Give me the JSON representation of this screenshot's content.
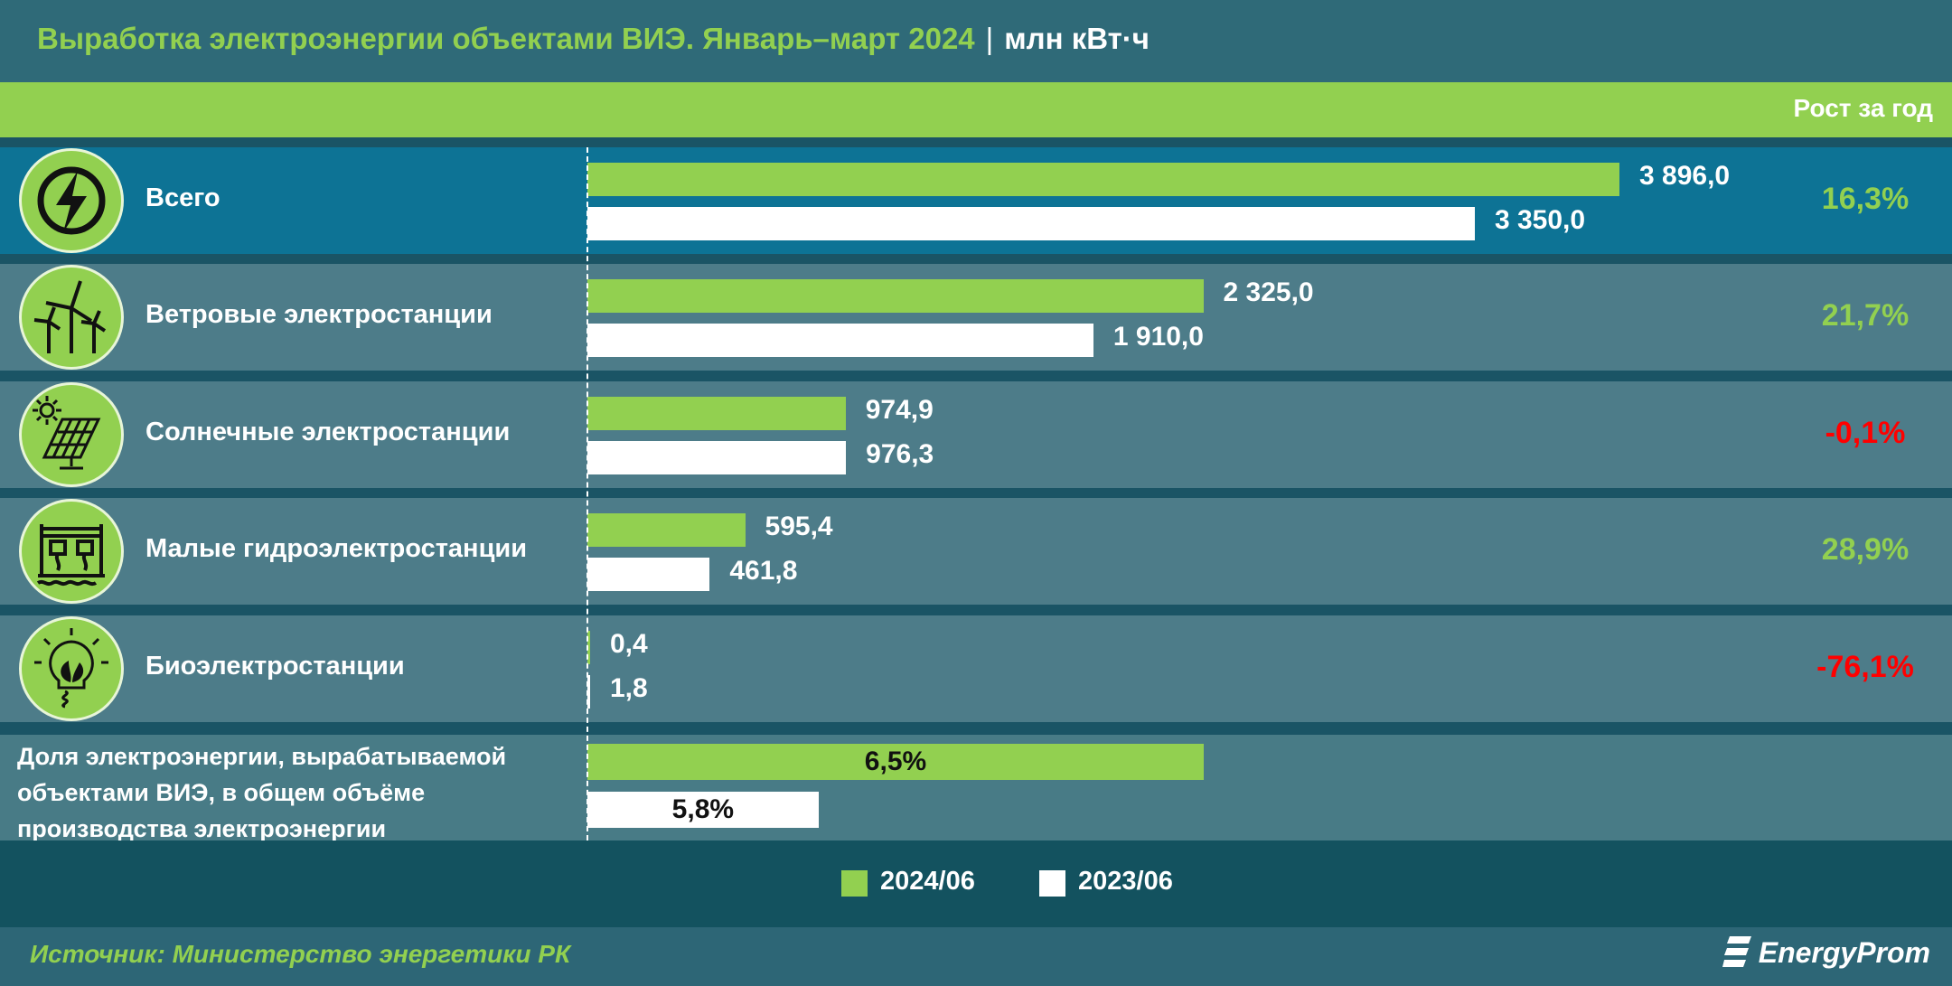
{
  "header": {
    "title": "Выработка электроэнергии объектами ВИЭ. Январь–март 2024",
    "separator": "|",
    "unit": "млн кВт·ч",
    "growth_header": "Рост за год"
  },
  "colors": {
    "series_2024": "#92d050",
    "series_2023": "#ffffff",
    "positive": "#92d050",
    "negative": "#ff0000"
  },
  "chart_data": {
    "type": "bar",
    "orientation": "horizontal",
    "title": "Выработка электроэнергии объектами ВИЭ. Январь–март 2024",
    "unit": "млн кВт·ч",
    "xlim": [
      0,
      3896
    ],
    "categories": [
      "Всего",
      "Ветровые электростанции",
      "Солнечные электростанции",
      "Малые гидроэлектростанции",
      "Биоэлектростанции"
    ],
    "icons": [
      "lightning-icon",
      "wind-turbine-icon",
      "solar-panel-icon",
      "hydro-dam-icon",
      "bio-bulb-icon"
    ],
    "series": [
      {
        "name": "2024/06",
        "values": [
          3896.0,
          2325.0,
          974.9,
          595.4,
          0.4
        ],
        "labels": [
          "3 896,0",
          "2 325,0",
          "974,9",
          "595,4",
          "0,4"
        ]
      },
      {
        "name": "2023/06",
        "values": [
          3350.0,
          1910.0,
          976.3,
          461.8,
          1.8
        ],
        "labels": [
          "3 350,0",
          "1 910,0",
          "976,3",
          "461,8",
          "1,8"
        ]
      }
    ],
    "growth": [
      16.3,
      21.7,
      -0.1,
      28.9,
      -76.1
    ],
    "growth_labels": [
      "16,3%",
      "21,7%",
      "-0,1%",
      "28,9%",
      "-76,1%"
    ],
    "share": {
      "label_lines": [
        "Доля электроэнергии, вырабатываемой",
        "объектами ВИЭ, в общем объёме",
        "производства электроэнергии"
      ],
      "values": [
        6.5,
        5.8
      ],
      "labels": [
        "6,5%",
        "5,8%"
      ]
    },
    "legend": [
      "2024/06",
      "2023/06"
    ],
    "legend_position": "bottom"
  },
  "footer": {
    "source": "Источник: Министерство энергетики РК",
    "logo": "EnergyProm"
  }
}
